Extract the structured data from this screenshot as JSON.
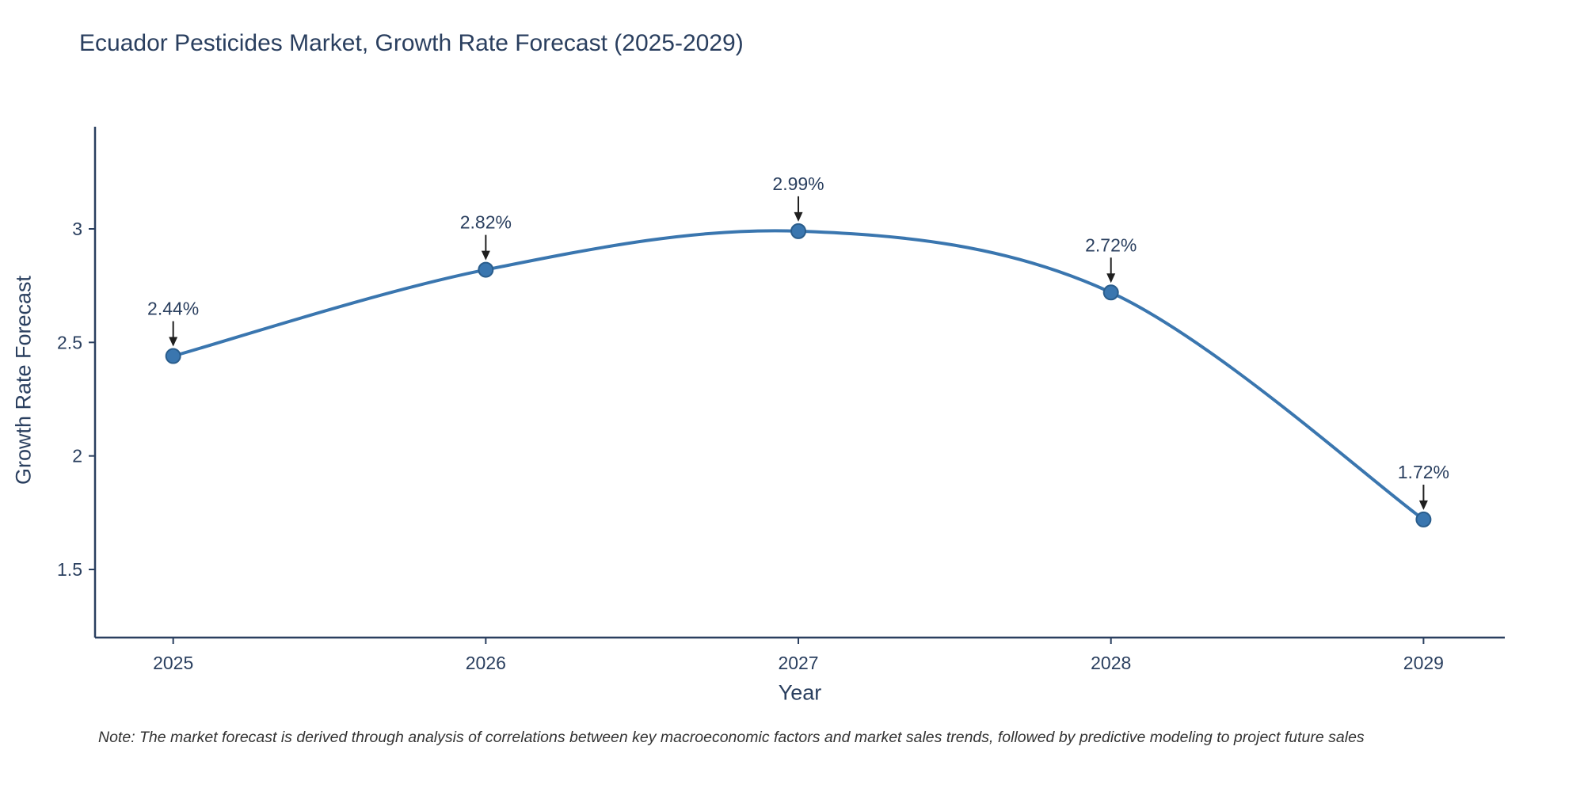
{
  "title": "Ecuador Pesticides Market, Growth Rate Forecast (2025-2029)",
  "note": "Note: The market forecast is derived through analysis of correlations between key macroeconomic factors and market sales trends, followed by predictive modeling to project future sales",
  "chart_data": {
    "type": "line",
    "title": "Ecuador Pesticides Market, Growth Rate Forecast (2025-2029)",
    "xlabel": "Year",
    "ylabel": "Growth Rate Forecast",
    "x": [
      2025,
      2026,
      2027,
      2028,
      2029
    ],
    "xtick_labels": [
      "2025",
      "2026",
      "2027",
      "2028",
      "2029"
    ],
    "series": [
      {
        "name": "Growth Rate Forecast",
        "values": [
          2.44,
          2.82,
          2.99,
          2.72,
          1.72
        ]
      }
    ],
    "annotations": [
      "2.44%",
      "2.82%",
      "2.99%",
      "2.72%",
      "1.72%"
    ],
    "xlim": [
      2024.75,
      2029.26
    ],
    "ylim": [
      1.2,
      3.45
    ],
    "yticks": [
      1.5,
      2,
      2.5,
      3
    ],
    "ytick_labels": [
      "1.5",
      "2",
      "2.5",
      "3"
    ],
    "grid": false,
    "legend": "none",
    "line_color": "#3a76af",
    "marker_color": "#3a76af",
    "marker_edge_color": "#2a5d8c",
    "axis_color": "#2a3f5f",
    "text_color": "#2a3f5f",
    "annotation_color": "#2a3f5f",
    "arrow_color": "#1f1f1f"
  }
}
